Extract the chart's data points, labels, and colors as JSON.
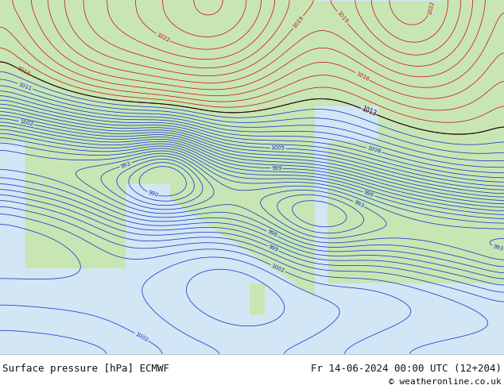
{
  "title_left": "Surface pressure [hPa] ECMWF",
  "title_right": "Fr 14-06-2024 00:00 UTC (12+204)",
  "copyright": "© weatheronline.co.uk",
  "ocean_color": "#d8e8f0",
  "land_color": "#c8e8b0",
  "footer_bg": "#ffffff",
  "footer_text_color": "#111111",
  "footer_font_size": 9,
  "contour_blue": "#1133cc",
  "contour_red": "#cc1111",
  "contour_black": "#111111",
  "label_blue": "#1133cc",
  "label_red": "#cc1111",
  "label_black": "#111111"
}
